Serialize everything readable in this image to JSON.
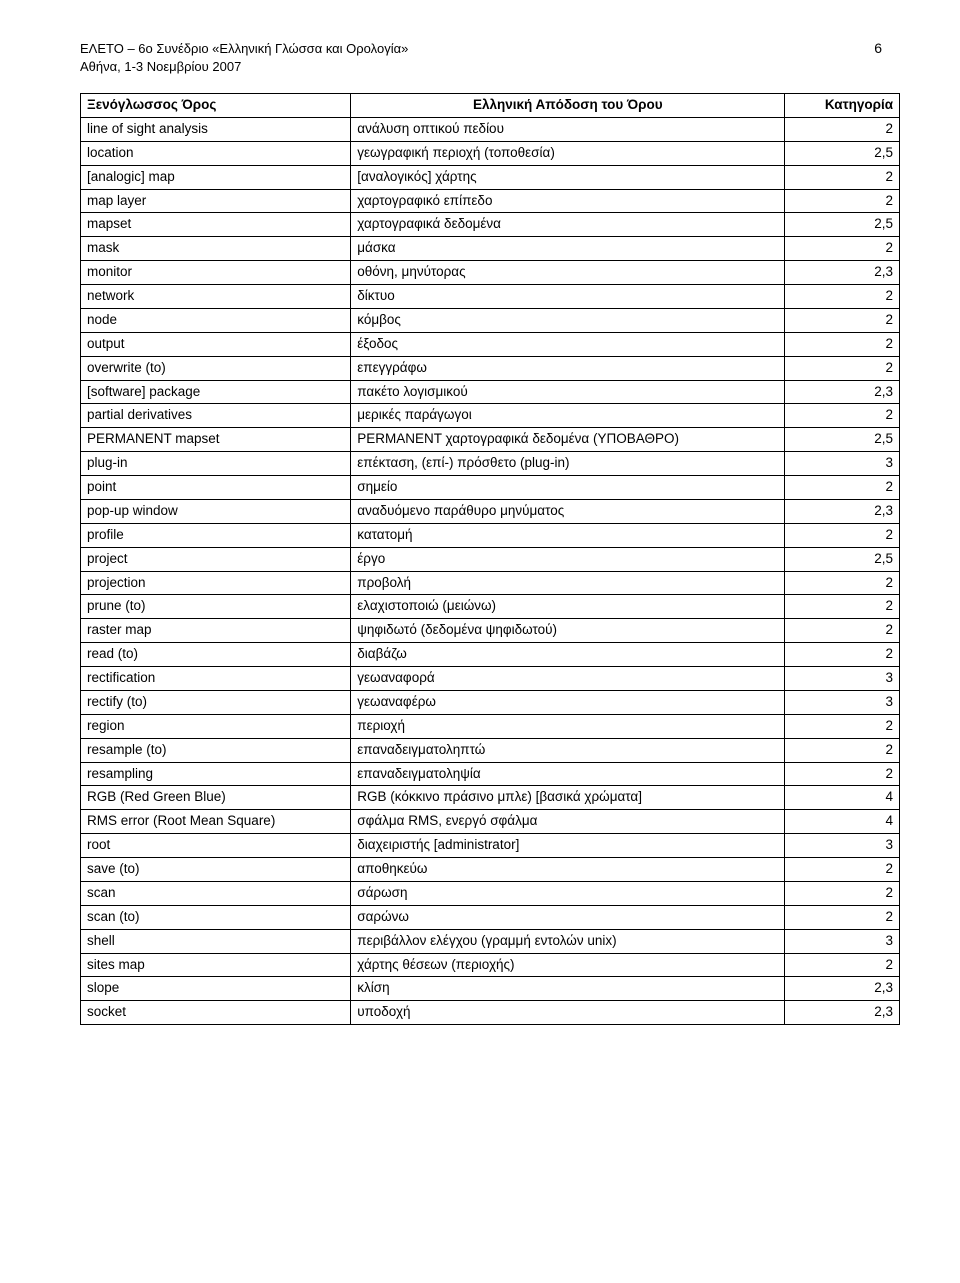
{
  "header": {
    "line1": "ΕΛΕΤΟ – 6ο Συνέδριο «Ελληνική Γλώσσα και Ορολογία»",
    "line2": "Αθήνα, 1-3 Νοεμβρίου 2007",
    "page_number": "6"
  },
  "table": {
    "columns": [
      "Ξενόγλωσσος Όρος",
      "Ελληνική Απόδοση του Όρου",
      "Κατηγορία"
    ],
    "rows": [
      [
        "line of sight analysis",
        "ανάλυση οπτικού πεδίου",
        "2"
      ],
      [
        "location",
        "γεωγραφική περιοχή (τοποθεσία)",
        "2,5"
      ],
      [
        "[analogic] map",
        "[αναλογικός] χάρτης",
        "2"
      ],
      [
        "map layer",
        "χαρτογραφικό επίπεδο",
        "2"
      ],
      [
        "mapset",
        "χαρτογραφικά δεδομένα",
        "2,5"
      ],
      [
        "mask",
        "μάσκα",
        "2"
      ],
      [
        "monitor",
        "οθόνη, μηνύτορας",
        "2,3"
      ],
      [
        "network",
        "δίκτυο",
        "2"
      ],
      [
        "node",
        "κόμβος",
        "2"
      ],
      [
        "output",
        "έξοδος",
        "2"
      ],
      [
        "overwrite (to)",
        "επεγγράφω",
        "2"
      ],
      [
        "[software] package",
        "πακέτο λογισμικού",
        "2,3"
      ],
      [
        "partial derivatives",
        "μερικές παράγωγοι",
        "2"
      ],
      [
        "PERMANENT mapset",
        "PERMANENT χαρτογραφικά δεδομένα (ΥΠΟΒΑΘΡΟ)",
        "2,5"
      ],
      [
        "plug-in",
        "επέκταση, (επί-) πρόσθετο (plug-in)",
        "3"
      ],
      [
        "point",
        "σημείο",
        "2"
      ],
      [
        "pop-up window",
        "αναδυόμενο παράθυρο μηνύματος",
        "2,3"
      ],
      [
        "profile",
        "κατατομή",
        "2"
      ],
      [
        "project",
        "έργο",
        "2,5"
      ],
      [
        "projection",
        "προβολή",
        "2"
      ],
      [
        "prune (to)",
        "ελαχιστοποιώ (μειώνω)",
        "2"
      ],
      [
        "raster map",
        "ψηφιδωτό (δεδομένα ψηφιδωτού)",
        "2"
      ],
      [
        "read (to)",
        "διαβάζω",
        "2"
      ],
      [
        "rectification",
        "γεωαναφορά",
        "3"
      ],
      [
        "rectify (to)",
        "γεωαναφέρω",
        "3"
      ],
      [
        "region",
        "περιοχή",
        "2"
      ],
      [
        "resample (to)",
        "επαναδειγματοληπτώ",
        "2"
      ],
      [
        "resampling",
        "επαναδειγματοληψία",
        "2"
      ],
      [
        "RGB (Red Green Blue)",
        "RGB (κόκκινο πράσινο μπλε) [βασικά χρώματα]",
        "4"
      ],
      [
        "RMS error (Root Mean Square)",
        "σφάλμα RMS, ενεργό σφάλμα",
        "4"
      ],
      [
        "root",
        "διαχειριστής [administrator]",
        "3"
      ],
      [
        "save (to)",
        "αποθηκεύω",
        "2"
      ],
      [
        "scan",
        "σάρωση",
        "2"
      ],
      [
        "scan (to)",
        "σαρώνω",
        "2"
      ],
      [
        "shell",
        "περιβάλλον ελέγχου (γραμμή εντολών unix)",
        "3"
      ],
      [
        "sites map",
        "χάρτης θέσεων (περιοχής)",
        "2"
      ],
      [
        "slope",
        "κλίση",
        "2,3"
      ],
      [
        "socket",
        "υποδοχή",
        "2,3"
      ]
    ]
  }
}
